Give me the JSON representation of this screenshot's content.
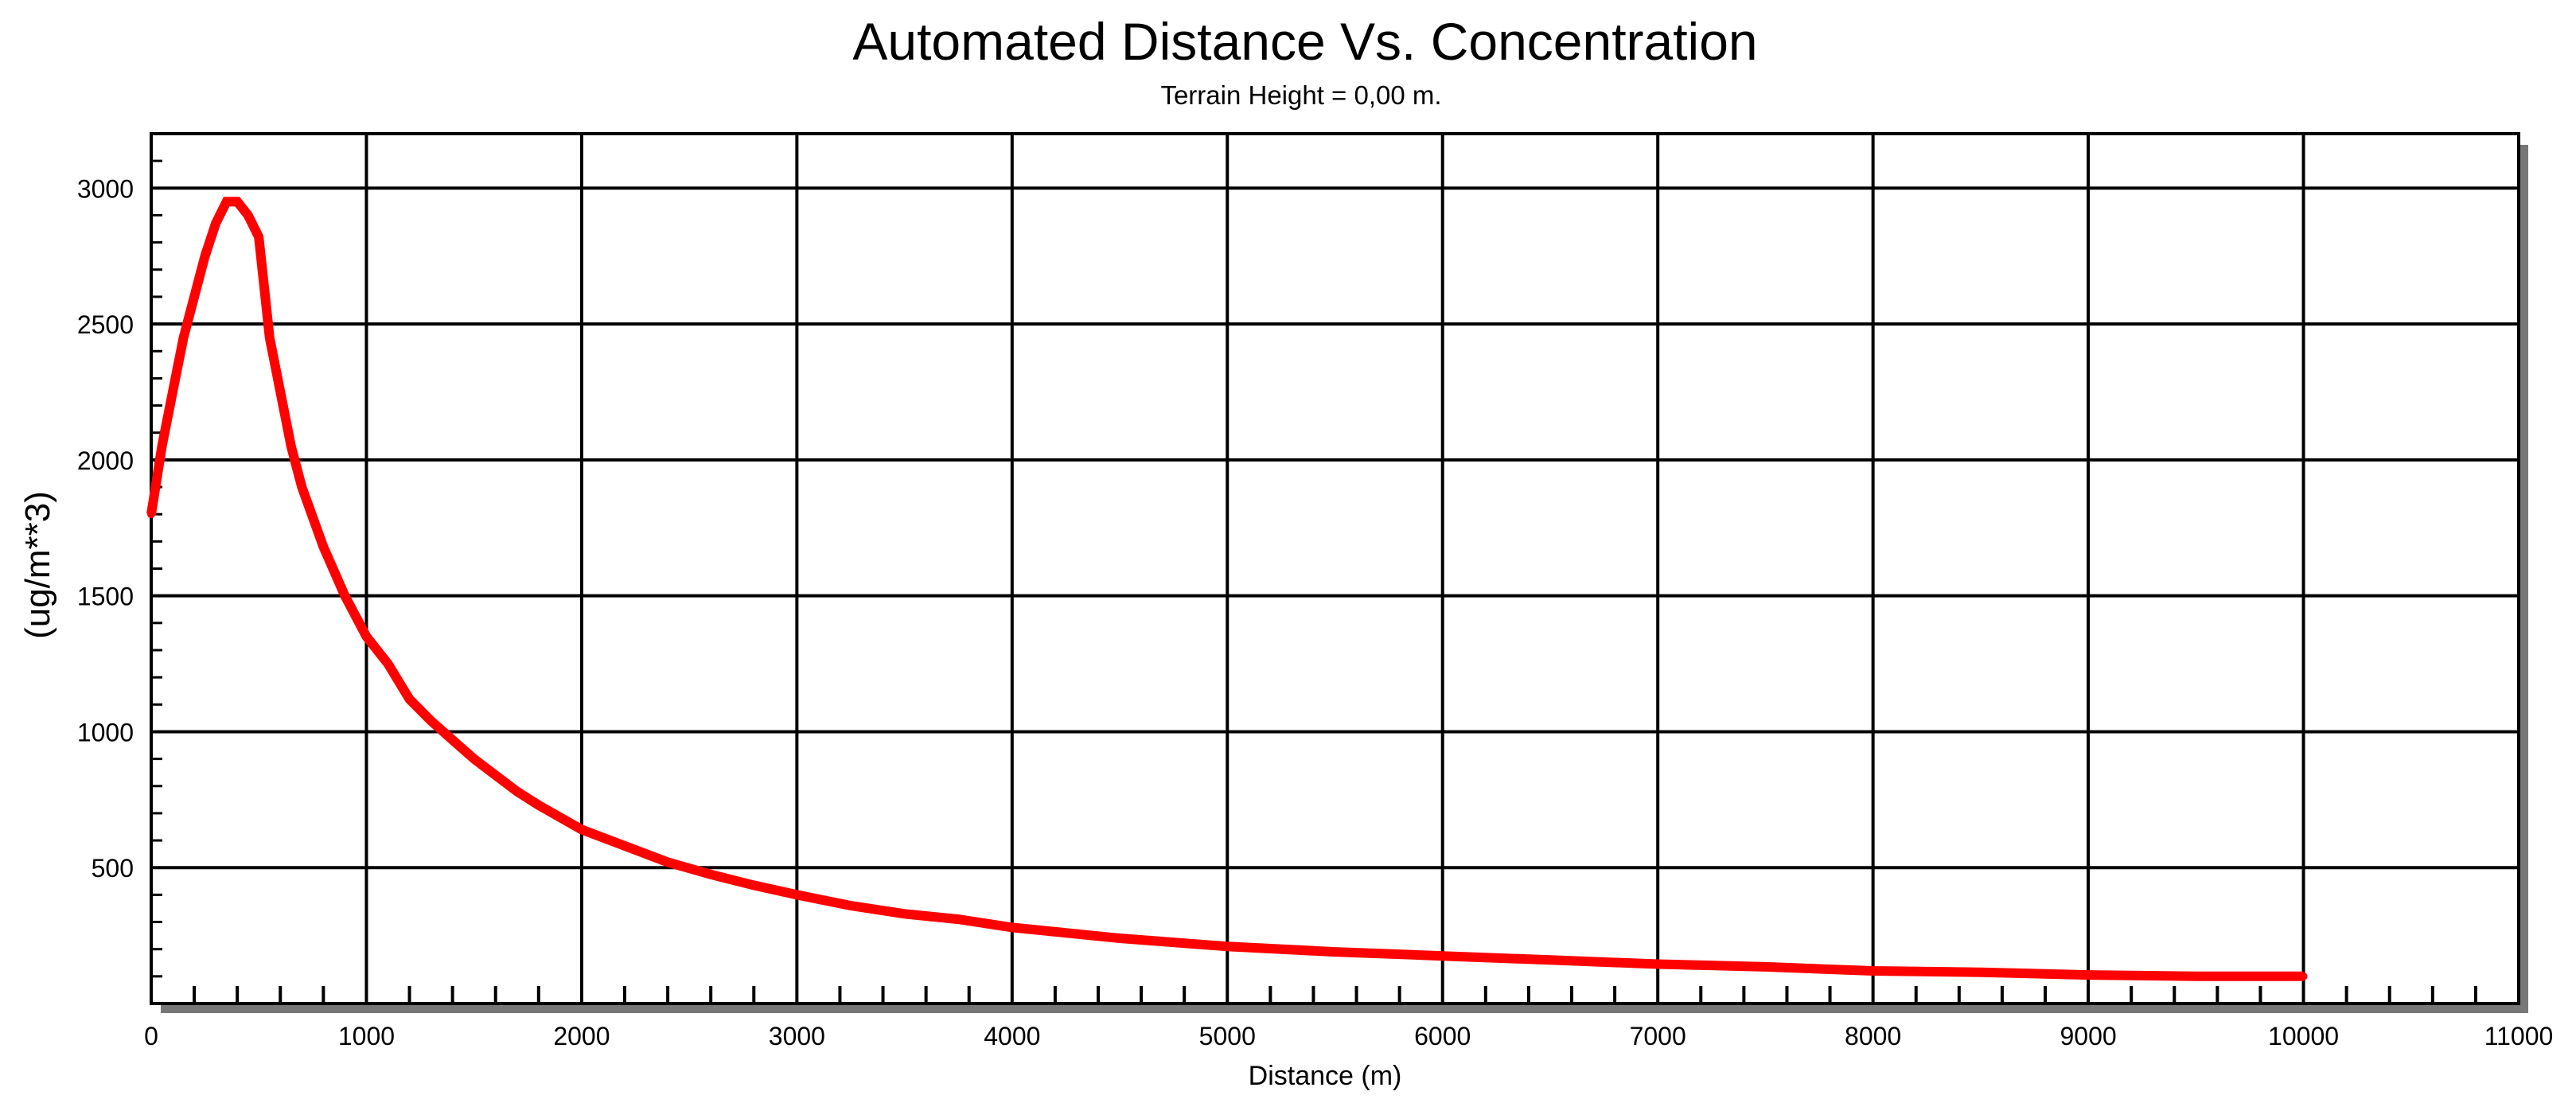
{
  "chart_data": {
    "type": "line",
    "title": "Automated Distance Vs. Concentration",
    "subtitle": "Terrain Height = 0,00 m.",
    "xlabel": "Distance (m)",
    "ylabel": "(ug/m**3)",
    "xlim": [
      0,
      11000
    ],
    "ylim": [
      0,
      3200
    ],
    "x_ticks": [
      0,
      1000,
      2000,
      3000,
      4000,
      5000,
      6000,
      7000,
      8000,
      9000,
      10000,
      11000
    ],
    "y_ticks": [
      500,
      1000,
      1500,
      2000,
      2500,
      3000
    ],
    "grid": true,
    "series_color": "#ff0000",
    "series": [
      {
        "x": [
          0,
          50,
          100,
          150,
          200,
          250,
          300,
          350,
          400,
          450,
          500,
          550,
          600,
          650,
          700,
          800,
          900,
          1000,
          1100,
          1200,
          1300,
          1400,
          1500,
          1600,
          1700,
          1800,
          2000,
          2200,
          2400,
          2600,
          2800,
          3000,
          3250,
          3500,
          3750,
          4000,
          4500,
          5000,
          5500,
          6000,
          6500,
          7000,
          7500,
          8000,
          8500,
          9000,
          9500,
          10000
        ],
        "y": [
          1800,
          2050,
          2250,
          2450,
          2600,
          2750,
          2870,
          2950,
          2950,
          2900,
          2820,
          2450,
          2250,
          2050,
          1900,
          1680,
          1500,
          1350,
          1250,
          1120,
          1040,
          970,
          900,
          840,
          780,
          730,
          640,
          580,
          520,
          475,
          435,
          400,
          360,
          330,
          310,
          280,
          240,
          210,
          190,
          175,
          160,
          145,
          135,
          120,
          115,
          105,
          100,
          100
        ]
      }
    ]
  }
}
